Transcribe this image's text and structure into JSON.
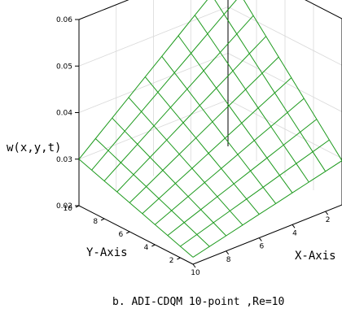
{
  "chart_data": {
    "type": "surface",
    "z_label": "w(x,y,t)",
    "x_label": "X-Axis",
    "y_label": "Y-Axis",
    "caption": "b. ADI-CDQM 10-point ,Re=10",
    "z_ticks": [
      "0.02",
      "0.03",
      "0.04",
      "0.05",
      "0.06"
    ],
    "x_ticks": [
      "2",
      "4",
      "6",
      "8",
      "10"
    ],
    "y_ticks": [
      "2",
      "4",
      "6",
      "8",
      "10"
    ],
    "zlim": [
      0.02,
      0.06
    ],
    "xlim": [
      1,
      10
    ],
    "ylim": [
      1,
      10
    ],
    "surface_color": "#1d9a1d",
    "corners_z": {
      "x1_y10": 0.057,
      "x10_y10": 0.03,
      "x1_y1": 0.0295,
      "x10_y1": 0.0215
    }
  }
}
